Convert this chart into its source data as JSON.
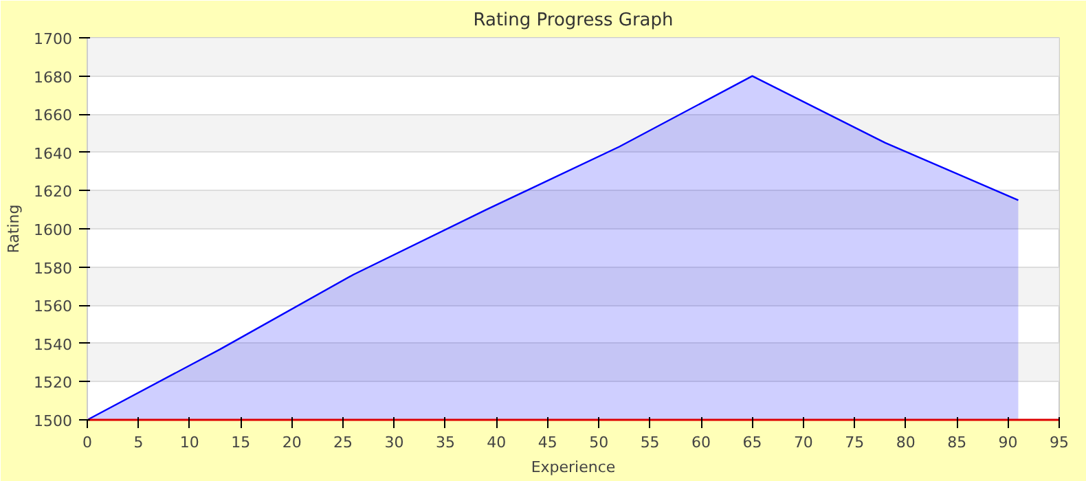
{
  "chart_data": {
    "type": "area",
    "title": "Rating Progress Graph",
    "xlabel": "Experience",
    "ylabel": "Rating",
    "x": [
      0,
      13,
      26,
      39,
      52,
      65,
      78,
      91
    ],
    "series": [
      {
        "color": "#0000ff",
        "values": [
          1500,
          1537,
          1576,
          1610,
          1643,
          1680,
          1645,
          1615
        ]
      }
    ],
    "xlim": [
      0,
      95
    ],
    "xticks": [
      0,
      5,
      10,
      15,
      20,
      25,
      30,
      35,
      40,
      45,
      50,
      55,
      60,
      65,
      70,
      75,
      80,
      85,
      90,
      95
    ],
    "ylim": [
      1500,
      1700
    ],
    "yticks": [
      1500,
      1520,
      1540,
      1560,
      1580,
      1600,
      1620,
      1640,
      1660,
      1680,
      1700
    ],
    "grid": "y"
  }
}
